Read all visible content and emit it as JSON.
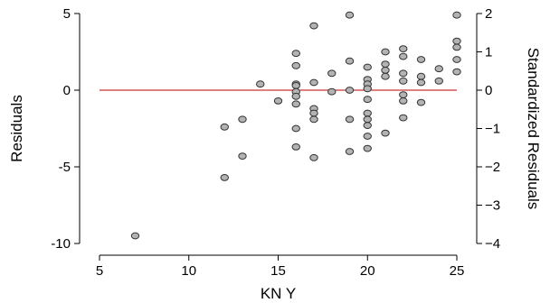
{
  "chart_data": {
    "type": "scatter",
    "title": "",
    "xlabel": "KN Y",
    "ylabel": "Residuals",
    "y2label": "Standardized Residuals",
    "xlim": [
      5,
      25
    ],
    "ylim": [
      -10,
      5
    ],
    "y2lim": [
      -4,
      2
    ],
    "x_ticks": [
      5,
      10,
      15,
      20,
      25
    ],
    "y_ticks": [
      -10,
      -5,
      0,
      5
    ],
    "y2_ticks": [
      -4,
      -3,
      -2,
      -1,
      0,
      1,
      2
    ],
    "reference_line": {
      "y": 0,
      "color": "#cc3333"
    },
    "point_color": "#b3b3b3",
    "series": [
      {
        "points": [
          {
            "x": 7,
            "y": -9.5
          },
          {
            "x": 12,
            "y": -5.7
          },
          {
            "x": 12,
            "y": -2.4
          },
          {
            "x": 13,
            "y": -4.3
          },
          {
            "x": 13,
            "y": -1.9
          },
          {
            "x": 14,
            "y": 0.4
          },
          {
            "x": 15,
            "y": -0.7
          },
          {
            "x": 16,
            "y": 2.4
          },
          {
            "x": 16,
            "y": 1.6
          },
          {
            "x": 16,
            "y": 0.4
          },
          {
            "x": 16,
            "y": 0.3
          },
          {
            "x": 16,
            "y": -0.1
          },
          {
            "x": 16,
            "y": -0.4
          },
          {
            "x": 16,
            "y": -0.9
          },
          {
            "x": 16,
            "y": -2.5
          },
          {
            "x": 16,
            "y": -3.7
          },
          {
            "x": 17,
            "y": 4.2
          },
          {
            "x": 17,
            "y": 0.5
          },
          {
            "x": 17,
            "y": -1.2
          },
          {
            "x": 17,
            "y": -1.5
          },
          {
            "x": 17,
            "y": -1.9
          },
          {
            "x": 17,
            "y": -4.4
          },
          {
            "x": 18,
            "y": 1.1
          },
          {
            "x": 18,
            "y": -0.1
          },
          {
            "x": 19,
            "y": 4.9
          },
          {
            "x": 19,
            "y": 1.9
          },
          {
            "x": 19,
            "y": 0.0
          },
          {
            "x": 19,
            "y": -1.9
          },
          {
            "x": 19,
            "y": -4.0
          },
          {
            "x": 20,
            "y": 1.5
          },
          {
            "x": 20,
            "y": 0.7
          },
          {
            "x": 20,
            "y": 0.4
          },
          {
            "x": 20,
            "y": 0.1
          },
          {
            "x": 20,
            "y": -0.6
          },
          {
            "x": 20,
            "y": -1.5
          },
          {
            "x": 20,
            "y": -1.9
          },
          {
            "x": 20,
            "y": -2.3
          },
          {
            "x": 20,
            "y": -3.0
          },
          {
            "x": 20,
            "y": -3.8
          },
          {
            "x": 21,
            "y": 2.5
          },
          {
            "x": 21,
            "y": 1.7
          },
          {
            "x": 21,
            "y": 1.3
          },
          {
            "x": 21,
            "y": 0.9
          },
          {
            "x": 21,
            "y": -2.8
          },
          {
            "x": 22,
            "y": 2.7
          },
          {
            "x": 22,
            "y": 2.2
          },
          {
            "x": 22,
            "y": 1.1
          },
          {
            "x": 22,
            "y": 0.6
          },
          {
            "x": 22,
            "y": -0.3
          },
          {
            "x": 22,
            "y": -0.7
          },
          {
            "x": 22,
            "y": -1.8
          },
          {
            "x": 23,
            "y": 2.0
          },
          {
            "x": 23,
            "y": 0.9
          },
          {
            "x": 23,
            "y": 0.5
          },
          {
            "x": 23,
            "y": -0.8
          },
          {
            "x": 24,
            "y": 1.4
          },
          {
            "x": 24,
            "y": 0.6
          },
          {
            "x": 25,
            "y": 4.9
          },
          {
            "x": 25,
            "y": 3.2
          },
          {
            "x": 25,
            "y": 2.8
          },
          {
            "x": 25,
            "y": 2.0
          },
          {
            "x": 25,
            "y": 1.2
          }
        ]
      }
    ]
  }
}
